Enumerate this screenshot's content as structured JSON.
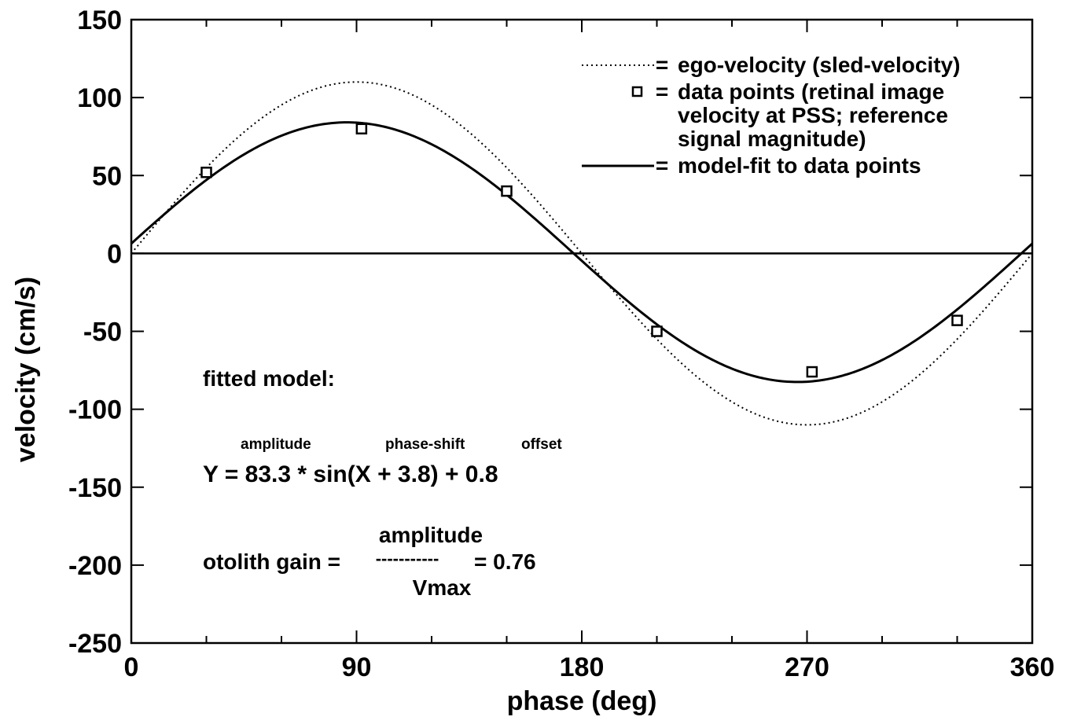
{
  "chart_data": {
    "type": "line",
    "xlabel": "phase (deg)",
    "ylabel": "velocity (cm/s)",
    "xlim": [
      0,
      360
    ],
    "ylim": [
      -250,
      150
    ],
    "xticks": [
      0,
      90,
      180,
      270,
      360
    ],
    "xtick_labels": [
      "0",
      "90",
      "180",
      "270",
      "360"
    ],
    "yticks": [
      150,
      100,
      50,
      0,
      -50,
      -100,
      -150,
      -200,
      -250
    ],
    "ytick_labels": [
      "150",
      "100",
      "50",
      "0",
      "-50",
      "-100",
      "-150",
      "-200",
      "-250"
    ],
    "grid": false,
    "legend_position": "top-right",
    "series": [
      {
        "name": "ego-velocity (sled-velocity)",
        "style": "dotted",
        "amplitude": 110,
        "phase_shift": 0,
        "offset": 0
      },
      {
        "name": "data points (retinal image velocity at PSS; reference signal magnitude)",
        "style": "square-markers",
        "x": [
          30,
          92,
          150,
          210,
          272,
          330
        ],
        "y": [
          52,
          80,
          40,
          -50,
          -76,
          -43
        ]
      },
      {
        "name": "model-fit to data points",
        "style": "solid",
        "amplitude": 83.3,
        "phase_shift": 3.8,
        "offset": 0.8
      }
    ],
    "legend": [
      {
        "symbol": "dotted-line",
        "eq": "=",
        "lines": [
          "ego-velocity (sled-velocity)"
        ]
      },
      {
        "symbol": "square",
        "eq": "=",
        "lines": [
          "data points (retinal image",
          "velocity at PSS; reference",
          "signal magnitude)"
        ]
      },
      {
        "symbol": "solid-line",
        "eq": "=",
        "lines": [
          "model-fit to data points"
        ]
      }
    ],
    "annotations": {
      "fitted_model": "fitted model:",
      "amplitude_label": "amplitude",
      "phase_shift_label": "phase-shift",
      "offset_label": "offset",
      "equation": "Y = 83.3 * sin(X + 3.8) + 0.8",
      "gain_lhs": "otolith gain =",
      "gain_numerator": "amplitude",
      "gain_bar": "-----------",
      "gain_denominator": "Vmax",
      "gain_rhs": "= 0.76"
    }
  }
}
